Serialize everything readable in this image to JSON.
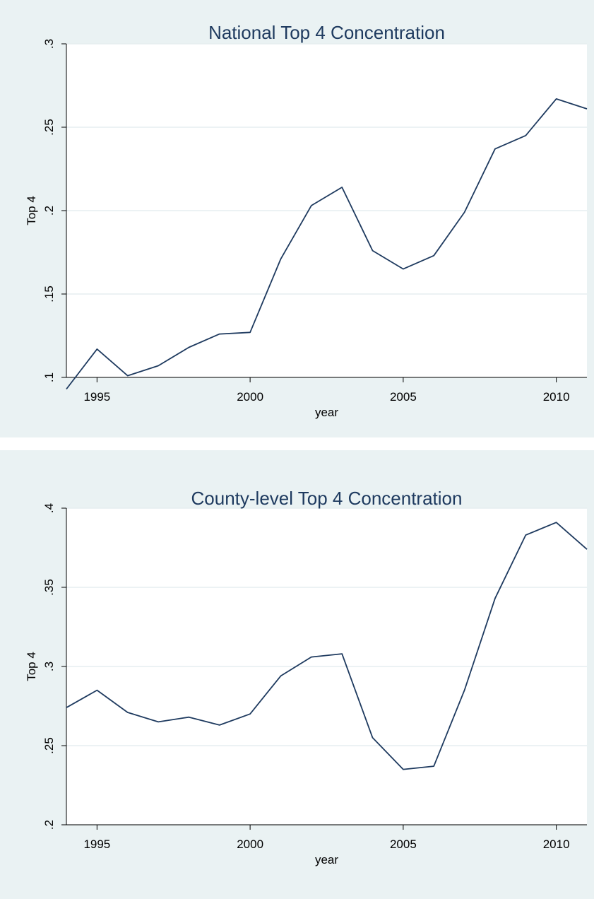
{
  "chart_data": [
    {
      "type": "line",
      "title": "National Top 4 Concentration",
      "xlabel": "year",
      "ylabel": "Top 4",
      "xlim": [
        1994,
        2011
      ],
      "ylim": [
        0.1,
        0.3
      ],
      "xticks": [
        1995,
        2000,
        2005,
        2010
      ],
      "xtick_labels": [
        "1995",
        "2000",
        "2005",
        "2010"
      ],
      "yticks": [
        0.1,
        0.15,
        0.2,
        0.25,
        0.3
      ],
      "ytick_labels": [
        ".1",
        ".15",
        ".2",
        ".25",
        ".3"
      ],
      "grid": true,
      "color": "#1e3a5f",
      "series": [
        {
          "x": [
            1994,
            1995,
            1996,
            1997,
            1998,
            1999,
            2000,
            2001,
            2002,
            2003,
            2004,
            2005,
            2006,
            2007,
            2008,
            2009,
            2010,
            2011
          ],
          "y": [
            0.093,
            0.117,
            0.101,
            0.107,
            0.118,
            0.126,
            0.127,
            0.171,
            0.203,
            0.214,
            0.176,
            0.165,
            0.173,
            0.199,
            0.237,
            0.245,
            0.267,
            0.261
          ]
        }
      ]
    },
    {
      "type": "line",
      "title": "County-level Top 4 Concentration",
      "xlabel": "year",
      "ylabel": "Top 4",
      "xlim": [
        1994,
        2011
      ],
      "ylim": [
        0.2,
        0.4
      ],
      "xticks": [
        1995,
        2000,
        2005,
        2010
      ],
      "xtick_labels": [
        "1995",
        "2000",
        "2005",
        "2010"
      ],
      "yticks": [
        0.2,
        0.25,
        0.3,
        0.35,
        0.4
      ],
      "ytick_labels": [
        ".2",
        ".25",
        ".3",
        ".35",
        ".4"
      ],
      "grid": true,
      "color": "#1e3a5f",
      "series": [
        {
          "x": [
            1994,
            1995,
            1996,
            1997,
            1998,
            1999,
            2000,
            2001,
            2002,
            2003,
            2004,
            2005,
            2006,
            2007,
            2008,
            2009,
            2010,
            2011
          ],
          "y": [
            0.274,
            0.285,
            0.271,
            0.265,
            0.268,
            0.263,
            0.27,
            0.294,
            0.306,
            0.308,
            0.255,
            0.235,
            0.237,
            0.285,
            0.343,
            0.383,
            0.391,
            0.374
          ]
        }
      ]
    }
  ]
}
